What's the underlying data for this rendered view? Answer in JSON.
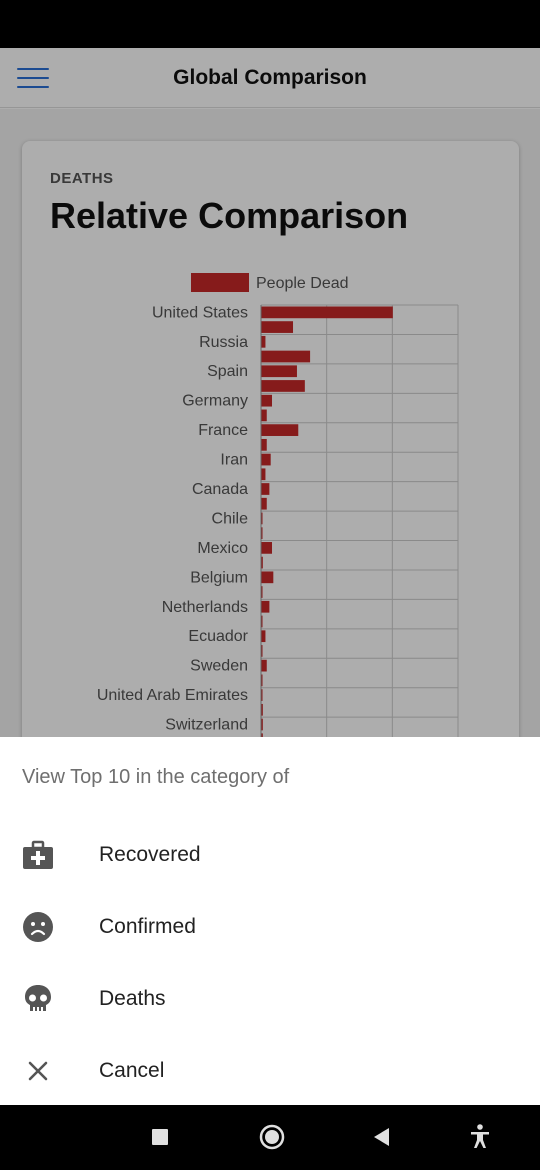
{
  "app_bar": {
    "title": "Global Comparison",
    "menu_icon": "hamburger-menu-icon"
  },
  "card": {
    "eyebrow": "DEATHS",
    "title": "Relative Comparison"
  },
  "chart_data": {
    "type": "bar",
    "orientation": "horizontal",
    "legend": "People Dead",
    "bar_color": "#c62828",
    "categories": [
      "United States",
      "",
      "Russia",
      "",
      "Spain",
      "",
      "Germany",
      "",
      "France",
      "",
      "Iran",
      "",
      "Canada",
      "",
      "Chile",
      "",
      "Mexico",
      "",
      "Belgium",
      "",
      "Netherlands",
      "",
      "Ecuador",
      "",
      "Sweden",
      "",
      "United Arab Emirates",
      "",
      "Switzerland",
      ""
    ],
    "values": [
      100,
      24,
      3,
      37,
      27,
      33,
      8,
      4,
      28,
      4,
      7,
      3,
      6,
      4,
      0.5,
      0.5,
      8,
      1,
      9,
      0.5,
      6,
      0.5,
      3,
      0.5,
      4,
      0.3,
      0.2,
      1,
      1,
      1
    ],
    "xlim": [
      0,
      150
    ],
    "grid": true
  },
  "sheet": {
    "header": "View Top 10 in the category of",
    "items": [
      {
        "label": "Recovered",
        "icon": "medical-bag-icon"
      },
      {
        "label": "Confirmed",
        "icon": "sad-face-icon"
      },
      {
        "label": "Deaths",
        "icon": "skull-icon"
      },
      {
        "label": "Cancel",
        "icon": "close-icon"
      }
    ]
  },
  "nav": {
    "recents": "square-icon",
    "home": "circle-icon",
    "back": "triangle-back-icon",
    "accessibility": "accessibility-icon"
  },
  "colors": {
    "accent": "#2a6fd6",
    "bar": "#c62828"
  }
}
